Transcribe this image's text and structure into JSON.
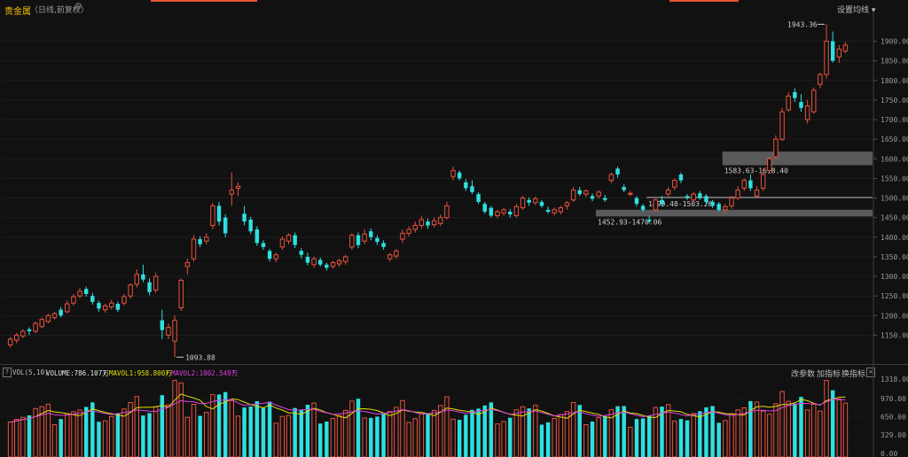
{
  "header": {
    "title": "贵金属",
    "subtitle": "（日线,前复权）",
    "ma_setting": "设置均线",
    "dropdown_caret": "▾"
  },
  "colors": {
    "up": "#e9533a",
    "down": "#2ee0e0",
    "ma5": "#e0e000",
    "ma10": "#e040e0",
    "background": "#111112",
    "axis_text": "#9a9a9a"
  },
  "volume_header": {
    "help": "?",
    "name": "VOL(5,10)",
    "volume": "VOLUME:786.107万",
    "volume_arrow": "↓",
    "mavol1": "MAVOL1:958.800万",
    "mavol1_arrow": "↓",
    "mavol2": "MAVOL2:1002.549万",
    "mavol2_arrow": "↑",
    "links": [
      "改参数",
      "加指标",
      "换指标"
    ],
    "close": "×"
  },
  "chart_data": [
    {
      "type": "candlestick",
      "y_axis_ticks": [
        "1900.00",
        "1850.00",
        "1800.00",
        "1750.00",
        "1700.00",
        "1650.00",
        "1600.00",
        "1550.00",
        "1500.00",
        "1450.00",
        "1400.00",
        "1350.00",
        "1300.00",
        "1250.00",
        "1200.00",
        "1150.00"
      ],
      "ylim": [
        1090,
        1960
      ],
      "annotations": {
        "high": "1943.36",
        "low": "1093.88",
        "gap_boxes": [
          {
            "label": "1583.63-1618.40",
            "range": [
              1583.63,
              1618.4
            ]
          },
          {
            "label": "1499.48-1503.26",
            "range": [
              1499.48,
              1503.26
            ]
          },
          {
            "label": "1452.93-1470.06",
            "range": [
              1452.93,
              1470.06
            ]
          }
        ]
      },
      "candles": [
        [
          1125,
          1140,
          1118,
          1145
        ],
        [
          1137,
          1150,
          1130,
          1156
        ],
        [
          1148,
          1160,
          1142,
          1165
        ],
        [
          1165,
          1160,
          1150,
          1170
        ],
        [
          1160,
          1180,
          1155,
          1185
        ],
        [
          1172,
          1190,
          1168,
          1195
        ],
        [
          1185,
          1200,
          1180,
          1205
        ],
        [
          1195,
          1205,
          1190,
          1210
        ],
        [
          1215,
          1200,
          1195,
          1222
        ],
        [
          1210,
          1230,
          1205,
          1238
        ],
        [
          1232,
          1248,
          1225,
          1255
        ],
        [
          1250,
          1262,
          1244,
          1270
        ],
        [
          1268,
          1255,
          1248,
          1274
        ],
        [
          1250,
          1235,
          1228,
          1258
        ],
        [
          1232,
          1218,
          1210,
          1238
        ],
        [
          1215,
          1225,
          1208,
          1230
        ],
        [
          1222,
          1232,
          1215,
          1240
        ],
        [
          1230,
          1215,
          1210,
          1236
        ],
        [
          1232,
          1248,
          1226,
          1255
        ],
        [
          1250,
          1278,
          1244,
          1282
        ],
        [
          1280,
          1305,
          1272,
          1318
        ],
        [
          1305,
          1292,
          1285,
          1330
        ],
        [
          1285,
          1260,
          1252,
          1295
        ],
        [
          1265,
          1300,
          1258,
          1310
        ],
        [
          1188,
          1163,
          1140,
          1215
        ],
        [
          1150,
          1170,
          1140,
          1180
        ],
        [
          1135,
          1188,
          1093.88,
          1200
        ],
        [
          1220,
          1290,
          1212,
          1295
        ],
        [
          1325,
          1335,
          1305,
          1345
        ],
        [
          1345,
          1395,
          1338,
          1405
        ],
        [
          1395,
          1382,
          1375,
          1402
        ],
        [
          1390,
          1400,
          1382,
          1410
        ],
        [
          1430,
          1480,
          1420,
          1488
        ],
        [
          1480,
          1440,
          1430,
          1490
        ],
        [
          1450,
          1410,
          1400,
          1458
        ],
        [
          1510,
          1520,
          1480,
          1565
        ],
        [
          1525,
          1530,
          1505,
          1540
        ],
        [
          1460,
          1440,
          1430,
          1480
        ],
        [
          1445,
          1415,
          1408,
          1452
        ],
        [
          1420,
          1385,
          1378,
          1428
        ],
        [
          1385,
          1375,
          1368,
          1392
        ],
        [
          1365,
          1345,
          1338,
          1370
        ],
        [
          1345,
          1355,
          1336,
          1360
        ],
        [
          1375,
          1395,
          1368,
          1402
        ],
        [
          1390,
          1405,
          1382,
          1410
        ],
        [
          1405,
          1380,
          1372,
          1412
        ],
        [
          1365,
          1355,
          1346,
          1372
        ],
        [
          1350,
          1335,
          1328,
          1360
        ],
        [
          1330,
          1345,
          1322,
          1350
        ],
        [
          1342,
          1330,
          1325,
          1348
        ],
        [
          1330,
          1322,
          1315,
          1335
        ],
        [
          1325,
          1335,
          1320,
          1340
        ],
        [
          1332,
          1340,
          1325,
          1345
        ],
        [
          1338,
          1350,
          1330,
          1355
        ],
        [
          1375,
          1405,
          1368,
          1410
        ],
        [
          1405,
          1380,
          1372,
          1412
        ],
        [
          1390,
          1408,
          1382,
          1420
        ],
        [
          1415,
          1400,
          1392,
          1422
        ],
        [
          1398,
          1388,
          1380,
          1405
        ],
        [
          1385,
          1375,
          1368,
          1392
        ],
        [
          1345,
          1355,
          1338,
          1360
        ],
        [
          1352,
          1365,
          1345,
          1370
        ],
        [
          1395,
          1410,
          1385,
          1420
        ],
        [
          1410,
          1420,
          1402,
          1428
        ],
        [
          1420,
          1430,
          1412,
          1440
        ],
        [
          1430,
          1445,
          1422,
          1455
        ],
        [
          1440,
          1430,
          1422,
          1448
        ],
        [
          1432,
          1442,
          1425,
          1450
        ],
        [
          1435,
          1450,
          1428,
          1458
        ],
        [
          1450,
          1480,
          1445,
          1490
        ],
        [
          1555,
          1570,
          1545,
          1580
        ],
        [
          1565,
          1550,
          1545,
          1570
        ],
        [
          1540,
          1525,
          1518,
          1548
        ],
        [
          1530,
          1515,
          1510,
          1545
        ],
        [
          1510,
          1490,
          1485,
          1515
        ],
        [
          1485,
          1465,
          1460,
          1490
        ],
        [
          1475,
          1455,
          1450,
          1480
        ],
        [
          1455,
          1465,
          1448,
          1470
        ],
        [
          1462,
          1470,
          1455,
          1475
        ],
        [
          1465,
          1458,
          1450,
          1472
        ],
        [
          1455,
          1478,
          1450,
          1485
        ],
        [
          1475,
          1500,
          1470,
          1505
        ],
        [
          1495,
          1488,
          1480,
          1502
        ],
        [
          1488,
          1498,
          1482,
          1504
        ],
        [
          1490,
          1480,
          1475,
          1495
        ],
        [
          1470,
          1465,
          1460,
          1478
        ],
        [
          1462,
          1470,
          1455,
          1475
        ],
        [
          1465,
          1475,
          1458,
          1480
        ],
        [
          1480,
          1488,
          1470,
          1492
        ],
        [
          1495,
          1520,
          1490,
          1528
        ],
        [
          1520,
          1510,
          1505,
          1528
        ],
        [
          1510,
          1518,
          1502,
          1522
        ],
        [
          1505,
          1498,
          1492,
          1512
        ],
        [
          1505,
          1515,
          1498,
          1520
        ],
        [
          1500,
          1495,
          1490,
          1508
        ],
        [
          1545,
          1560,
          1538,
          1565
        ],
        [
          1575,
          1560,
          1552,
          1580
        ],
        [
          1528,
          1520,
          1515,
          1535
        ],
        [
          1510,
          1512,
          1505,
          1518
        ],
        [
          1500,
          1485,
          1478,
          1505
        ],
        [
          1480,
          1470,
          1465,
          1485
        ],
        [
          1445,
          1440,
          1435,
          1455
        ],
        [
          1470,
          1495,
          1465,
          1498
        ],
        [
          1495,
          1485,
          1478,
          1505
        ],
        [
          1510,
          1520,
          1504,
          1528
        ],
        [
          1528,
          1545,
          1520,
          1550
        ],
        [
          1560,
          1545,
          1538,
          1565
        ],
        [
          1505,
          1500,
          1495,
          1510
        ],
        [
          1495,
          1510,
          1490,
          1515
        ],
        [
          1512,
          1500,
          1495,
          1518
        ],
        [
          1505,
          1490,
          1485,
          1510
        ],
        [
          1490,
          1480,
          1475,
          1495
        ],
        [
          1485,
          1470,
          1465,
          1490
        ],
        [
          1470,
          1478,
          1462,
          1485
        ],
        [
          1480,
          1500,
          1472,
          1505
        ],
        [
          1500,
          1520,
          1495,
          1530
        ],
        [
          1525,
          1545,
          1518,
          1550
        ],
        [
          1545,
          1525,
          1518,
          1560
        ],
        [
          1505,
          1520,
          1499,
          1530
        ],
        [
          1525,
          1560,
          1518,
          1575
        ],
        [
          1570,
          1600,
          1565,
          1605
        ],
        [
          1605,
          1650,
          1600,
          1660
        ],
        [
          1650,
          1720,
          1645,
          1730
        ],
        [
          1725,
          1760,
          1720,
          1770
        ],
        [
          1770,
          1755,
          1745,
          1780
        ],
        [
          1745,
          1730,
          1720,
          1765
        ],
        [
          1700,
          1735,
          1690,
          1750
        ],
        [
          1720,
          1775,
          1715,
          1782
        ],
        [
          1790,
          1815,
          1780,
          1820
        ],
        [
          1815,
          1900,
          1805,
          1943.36
        ],
        [
          1900,
          1850,
          1845,
          1925
        ],
        [
          1860,
          1880,
          1845,
          1890
        ],
        [
          1875,
          1890,
          1870,
          1898
        ]
      ]
    },
    {
      "type": "bar",
      "name": "VOL",
      "y_axis_ticks": [
        "1318.00",
        "970.00",
        "650.00",
        "329.00",
        "0.00"
      ],
      "ylim": [
        0,
        1318
      ]
    }
  ]
}
